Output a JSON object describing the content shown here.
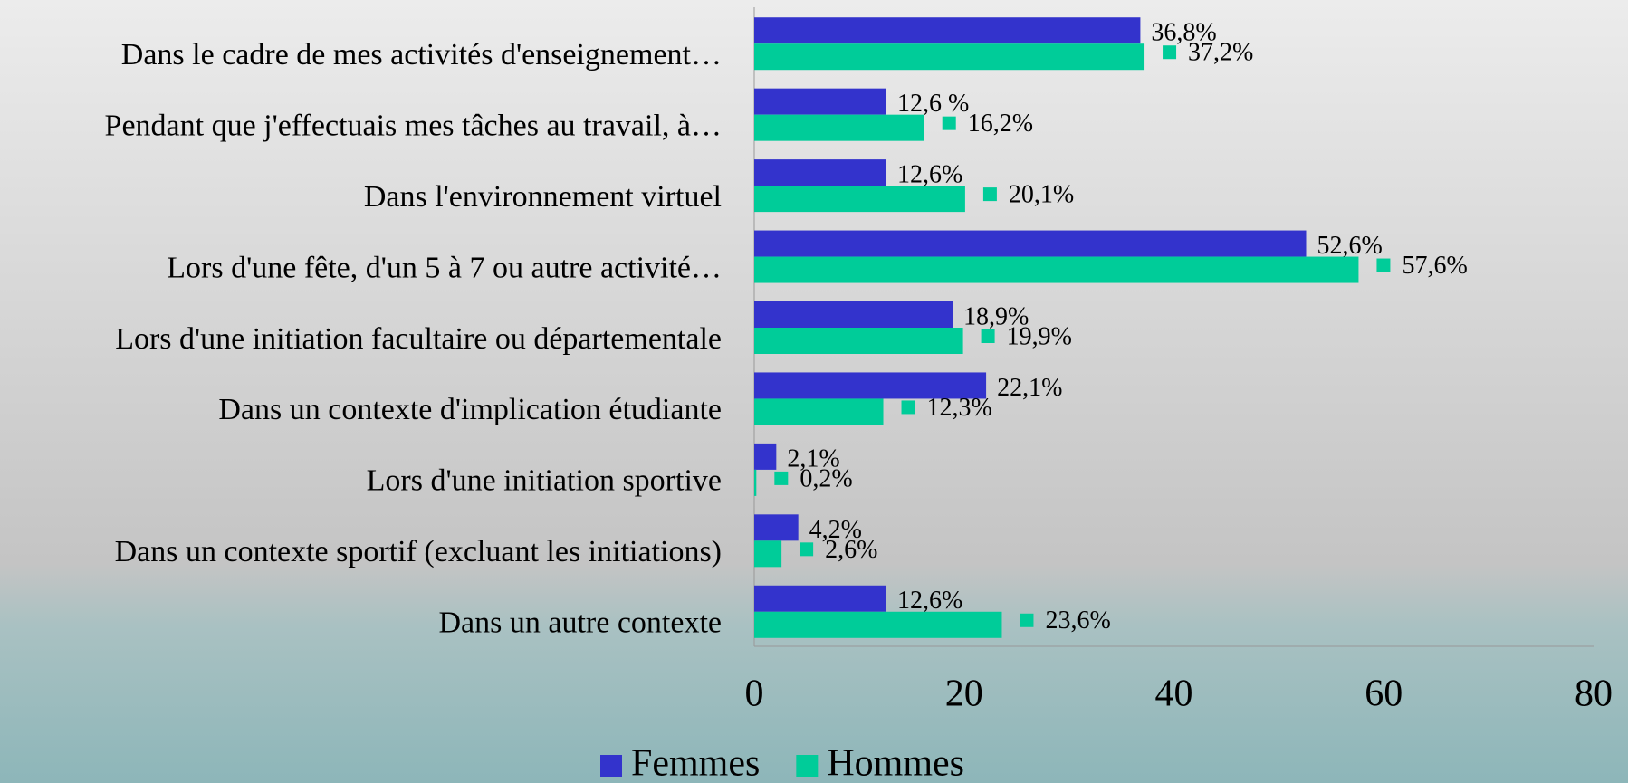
{
  "chart_data": {
    "type": "barh",
    "categories": [
      "Dans le cadre de mes activités d'enseignement…",
      "Pendant que j'effectuais mes tâches au travail, à…",
      "Dans l'environnement virtuel",
      "Lors d'une fête, d'un 5 à 7 ou autre activité…",
      "Lors d'une initiation facultaire ou départementale",
      "Dans un contexte d'implication étudiante",
      "Lors d'une initiation sportive",
      "Dans un contexte sportif (excluant les initiations)",
      "Dans un autre contexte"
    ],
    "series": [
      {
        "name": "Femmes",
        "color": "#3333cc",
        "values": [
          36.8,
          12.6,
          12.6,
          52.6,
          18.9,
          22.1,
          2.1,
          4.2,
          12.6
        ],
        "value_labels": [
          "36,8%",
          "12,6 %",
          "12,6%",
          "52,6%",
          "18,9%",
          "22,1%",
          "2,1%",
          "4,2%",
          "12,6%"
        ]
      },
      {
        "name": "Hommes",
        "color": "#00cc99",
        "values": [
          37.2,
          16.2,
          20.1,
          57.6,
          19.9,
          12.3,
          0.2,
          2.6,
          23.6
        ],
        "value_labels": [
          "37,2%",
          "16,2%",
          "20,1%",
          "57,6%",
          "19,9%",
          "12,3%",
          "0,2%",
          "2,6%",
          "23,6%"
        ]
      }
    ],
    "xlim": [
      0,
      80
    ],
    "xticks": [
      0,
      20,
      40,
      60,
      80
    ],
    "legend": "bottom"
  }
}
